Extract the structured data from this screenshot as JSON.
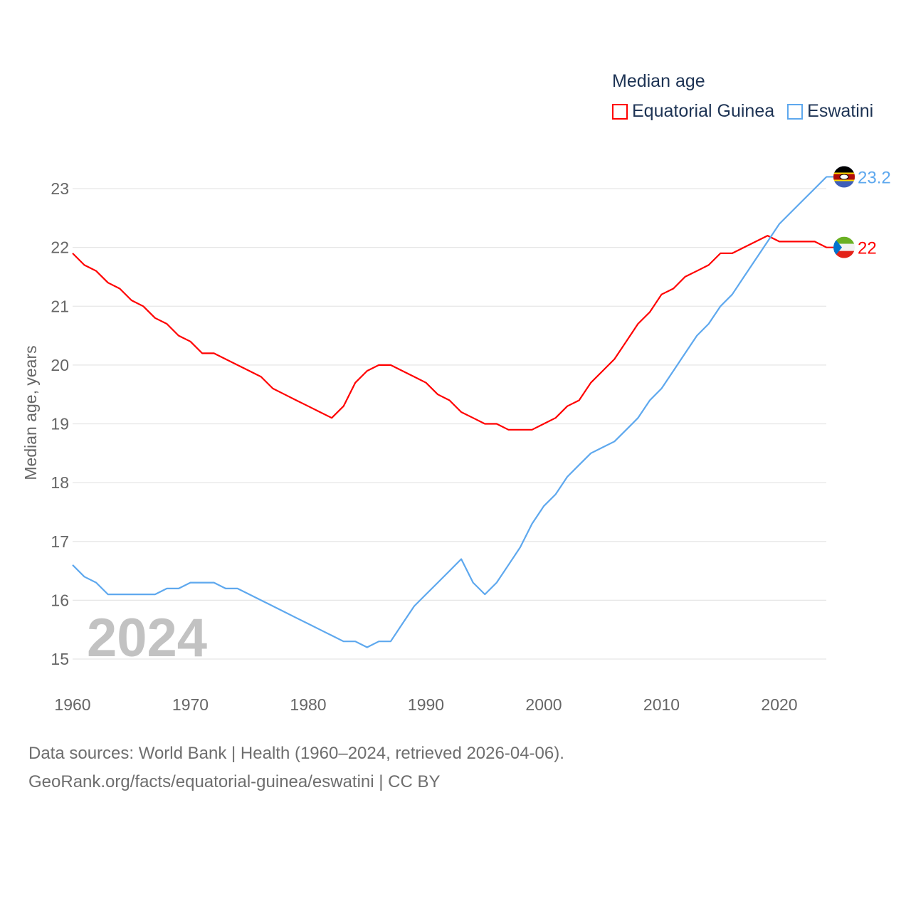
{
  "chart_data": {
    "type": "line",
    "title": "Median age",
    "xlabel": "",
    "ylabel": "Median age, years",
    "xlim": [
      1960,
      2024
    ],
    "ylim": [
      15,
      23.2
    ],
    "yticks": [
      15,
      16,
      17,
      18,
      19,
      20,
      21,
      22,
      23
    ],
    "xticks": [
      1960,
      1970,
      1980,
      1990,
      2000,
      2010,
      2020
    ],
    "grid": true,
    "legend_position": "top-right",
    "watermark_year": "2024",
    "x": [
      1960,
      1961,
      1962,
      1963,
      1964,
      1965,
      1966,
      1967,
      1968,
      1969,
      1970,
      1971,
      1972,
      1973,
      1974,
      1975,
      1976,
      1977,
      1978,
      1979,
      1980,
      1981,
      1982,
      1983,
      1984,
      1985,
      1986,
      1987,
      1988,
      1989,
      1990,
      1991,
      1992,
      1993,
      1994,
      1995,
      1996,
      1997,
      1998,
      1999,
      2000,
      2001,
      2002,
      2003,
      2004,
      2005,
      2006,
      2007,
      2008,
      2009,
      2010,
      2011,
      2012,
      2013,
      2014,
      2015,
      2016,
      2017,
      2018,
      2019,
      2020,
      2021,
      2022,
      2023,
      2024
    ],
    "series": [
      {
        "name": "Equatorial Guinea",
        "color": "#ff0000",
        "end_label": "22",
        "flag": "equatorial-guinea",
        "values": [
          21.9,
          21.7,
          21.6,
          21.4,
          21.3,
          21.1,
          21.0,
          20.8,
          20.7,
          20.5,
          20.4,
          20.2,
          20.2,
          20.1,
          20.0,
          19.9,
          19.8,
          19.6,
          19.5,
          19.4,
          19.3,
          19.2,
          19.1,
          19.3,
          19.7,
          19.9,
          20.0,
          20.0,
          19.9,
          19.8,
          19.7,
          19.5,
          19.4,
          19.2,
          19.1,
          19.0,
          19.0,
          18.9,
          18.9,
          18.9,
          19.0,
          19.1,
          19.3,
          19.4,
          19.7,
          19.9,
          20.1,
          20.4,
          20.7,
          20.9,
          21.2,
          21.3,
          21.5,
          21.6,
          21.7,
          21.9,
          21.9,
          22.0,
          22.1,
          22.2,
          22.1,
          22.1,
          22.1,
          22.1,
          22.0
        ]
      },
      {
        "name": "Eswatini",
        "color": "#5ea8ee",
        "end_label": "23.2",
        "flag": "eswatini",
        "values": [
          16.6,
          16.4,
          16.3,
          16.1,
          16.1,
          16.1,
          16.1,
          16.1,
          16.2,
          16.2,
          16.3,
          16.3,
          16.3,
          16.2,
          16.2,
          16.1,
          16.0,
          15.9,
          15.8,
          15.7,
          15.6,
          15.5,
          15.4,
          15.3,
          15.3,
          15.2,
          15.3,
          15.3,
          15.6,
          15.9,
          16.1,
          16.3,
          16.5,
          16.7,
          16.3,
          16.1,
          16.3,
          16.6,
          16.9,
          17.3,
          17.6,
          17.8,
          18.1,
          18.3,
          18.5,
          18.6,
          18.7,
          18.9,
          19.1,
          19.4,
          19.6,
          19.9,
          20.2,
          20.5,
          20.7,
          21.0,
          21.2,
          21.5,
          21.8,
          22.1,
          22.4,
          22.6,
          22.8,
          23.0,
          23.2
        ]
      }
    ]
  },
  "footer": {
    "line1": "Data sources: World Bank | Health (1960–2024, retrieved 2026-04-06).",
    "line2": "GeoRank.org/facts/equatorial-guinea/eswatini | CC BY"
  }
}
